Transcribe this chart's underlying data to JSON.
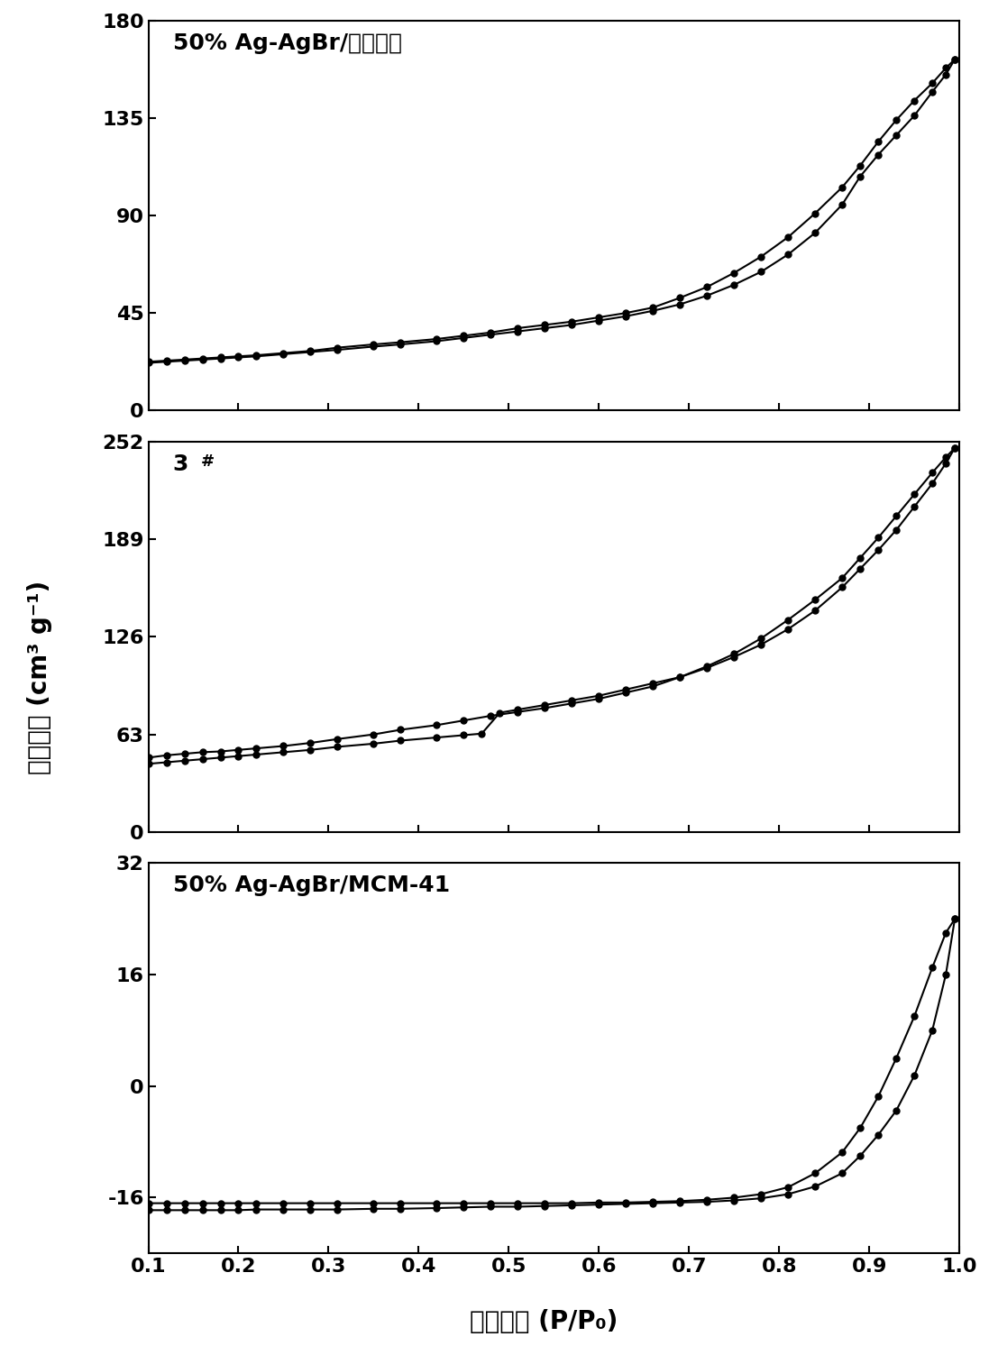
{
  "panel1_label": "50% Ag-AgBr/凹凸棒石",
  "panel1_ylim": [
    0,
    180
  ],
  "panel1_yticks": [
    0,
    45,
    90,
    135,
    180
  ],
  "panel1_adsorption_x": [
    0.1,
    0.12,
    0.14,
    0.16,
    0.18,
    0.2,
    0.22,
    0.25,
    0.28,
    0.31,
    0.35,
    0.38,
    0.42,
    0.45,
    0.48,
    0.51,
    0.54,
    0.57,
    0.6,
    0.63,
    0.66,
    0.69,
    0.72,
    0.75,
    0.78,
    0.81,
    0.84,
    0.87,
    0.89,
    0.91,
    0.93,
    0.95,
    0.97,
    0.985,
    0.995
  ],
  "panel1_adsorption_y": [
    22.0,
    22.5,
    23.0,
    23.5,
    24.0,
    24.5,
    25.0,
    26.0,
    27.0,
    28.0,
    29.5,
    30.5,
    32.0,
    33.5,
    35.0,
    36.5,
    38.0,
    39.5,
    41.5,
    43.5,
    46.0,
    49.0,
    53.0,
    58.0,
    64.0,
    72.0,
    82.0,
    95.0,
    108.0,
    118.0,
    127.0,
    136.0,
    147.0,
    155.0,
    162.0
  ],
  "panel1_desorption_x": [
    0.995,
    0.985,
    0.97,
    0.95,
    0.93,
    0.91,
    0.89,
    0.87,
    0.84,
    0.81,
    0.78,
    0.75,
    0.72,
    0.69,
    0.66,
    0.63,
    0.6,
    0.57,
    0.54,
    0.51,
    0.48,
    0.45,
    0.42,
    0.38,
    0.35,
    0.31,
    0.28,
    0.25,
    0.22,
    0.2,
    0.18,
    0.16,
    0.14,
    0.12,
    0.1
  ],
  "panel1_desorption_y": [
    162.0,
    158.0,
    151.0,
    143.0,
    134.0,
    124.0,
    113.0,
    103.0,
    91.0,
    80.0,
    71.0,
    63.5,
    57.0,
    52.0,
    47.5,
    45.0,
    43.0,
    41.0,
    39.5,
    38.0,
    36.0,
    34.5,
    33.0,
    31.5,
    30.5,
    29.0,
    27.5,
    26.5,
    25.5,
    25.0,
    24.5,
    24.0,
    23.5,
    23.0,
    22.5
  ],
  "panel2_ylim": [
    0,
    252
  ],
  "panel2_yticks": [
    0,
    63,
    126,
    189,
    252
  ],
  "panel2_adsorption_x": [
    0.1,
    0.12,
    0.14,
    0.16,
    0.18,
    0.2,
    0.22,
    0.25,
    0.28,
    0.31,
    0.35,
    0.38,
    0.42,
    0.45,
    0.47,
    0.49,
    0.51,
    0.54,
    0.57,
    0.6,
    0.63,
    0.66,
    0.69,
    0.72,
    0.75,
    0.78,
    0.81,
    0.84,
    0.87,
    0.89,
    0.91,
    0.93,
    0.95,
    0.97,
    0.985,
    0.995
  ],
  "panel2_adsorption_y": [
    44.0,
    45.0,
    46.0,
    47.0,
    48.0,
    49.0,
    50.0,
    51.5,
    53.0,
    55.0,
    57.0,
    59.0,
    61.0,
    62.5,
    63.5,
    77.0,
    79.0,
    82.0,
    85.0,
    88.0,
    92.0,
    96.0,
    100.0,
    106.0,
    113.0,
    121.0,
    131.0,
    143.0,
    158.0,
    170.0,
    182.0,
    195.0,
    210.0,
    225.0,
    238.0,
    248.0
  ],
  "panel2_desorption_x": [
    0.995,
    0.985,
    0.97,
    0.95,
    0.93,
    0.91,
    0.89,
    0.87,
    0.84,
    0.81,
    0.78,
    0.75,
    0.72,
    0.69,
    0.66,
    0.63,
    0.6,
    0.57,
    0.54,
    0.51,
    0.48,
    0.45,
    0.42,
    0.38,
    0.35,
    0.31,
    0.28,
    0.25,
    0.22,
    0.2,
    0.18,
    0.16,
    0.14,
    0.12,
    0.1
  ],
  "panel2_desorption_y": [
    248.0,
    242.0,
    232.0,
    218.0,
    204.0,
    190.0,
    177.0,
    164.0,
    150.0,
    137.0,
    125.0,
    115.0,
    107.0,
    100.0,
    94.0,
    90.0,
    86.0,
    83.0,
    80.0,
    77.5,
    75.0,
    72.0,
    69.0,
    66.0,
    63.0,
    60.0,
    57.5,
    55.5,
    54.0,
    53.0,
    52.0,
    51.5,
    50.5,
    49.5,
    48.0
  ],
  "panel3_label": "50% Ag-AgBr/MCM-41",
  "panel3_ylim": [
    -24,
    32
  ],
  "panel3_yticks": [
    -16,
    0,
    16,
    32
  ],
  "panel3_adsorption_x": [
    0.1,
    0.12,
    0.14,
    0.16,
    0.18,
    0.2,
    0.22,
    0.25,
    0.28,
    0.31,
    0.35,
    0.38,
    0.42,
    0.45,
    0.48,
    0.51,
    0.54,
    0.57,
    0.6,
    0.63,
    0.66,
    0.69,
    0.72,
    0.75,
    0.78,
    0.81,
    0.84,
    0.87,
    0.89,
    0.91,
    0.93,
    0.95,
    0.97,
    0.985,
    0.995
  ],
  "panel3_adsorption_y": [
    -17.8,
    -17.8,
    -17.8,
    -17.8,
    -17.8,
    -17.8,
    -17.7,
    -17.7,
    -17.7,
    -17.7,
    -17.6,
    -17.6,
    -17.5,
    -17.4,
    -17.3,
    -17.3,
    -17.2,
    -17.1,
    -17.0,
    -16.9,
    -16.8,
    -16.7,
    -16.6,
    -16.4,
    -16.1,
    -15.5,
    -14.4,
    -12.5,
    -10.0,
    -7.0,
    -3.5,
    1.5,
    8.0,
    16.0,
    24.0
  ],
  "panel3_desorption_x": [
    0.995,
    0.985,
    0.97,
    0.95,
    0.93,
    0.91,
    0.89,
    0.87,
    0.84,
    0.81,
    0.78,
    0.75,
    0.72,
    0.69,
    0.66,
    0.63,
    0.6,
    0.57,
    0.54,
    0.51,
    0.48,
    0.45,
    0.42,
    0.38,
    0.35,
    0.31,
    0.28,
    0.25,
    0.22,
    0.2,
    0.18,
    0.16,
    0.14,
    0.12,
    0.1
  ],
  "panel3_desorption_y": [
    24.0,
    22.0,
    17.0,
    10.0,
    4.0,
    -1.5,
    -6.0,
    -9.5,
    -12.5,
    -14.5,
    -15.5,
    -16.0,
    -16.3,
    -16.5,
    -16.6,
    -16.7,
    -16.7,
    -16.8,
    -16.8,
    -16.8,
    -16.8,
    -16.8,
    -16.8,
    -16.8,
    -16.8,
    -16.8,
    -16.8,
    -16.8,
    -16.8,
    -16.8,
    -16.8,
    -16.8,
    -16.8,
    -16.8,
    -16.8
  ],
  "xlabel": "相对压力 (P/P₀)",
  "ylabel": "吸附质量 (cm³ g⁻¹)",
  "xlim": [
    0.1,
    1.0
  ],
  "xticks": [
    0.1,
    0.2,
    0.3,
    0.4,
    0.5,
    0.6,
    0.7,
    0.8,
    0.9,
    1.0
  ],
  "xtick_labels": [
    "0.1",
    "0.2",
    "0.3",
    "0.4",
    "0.5",
    "0.6",
    "0.7",
    "0.8",
    "0.9",
    "1.0"
  ],
  "line_color": "#000000",
  "marker": "o",
  "markersize": 5,
  "linewidth": 1.5
}
